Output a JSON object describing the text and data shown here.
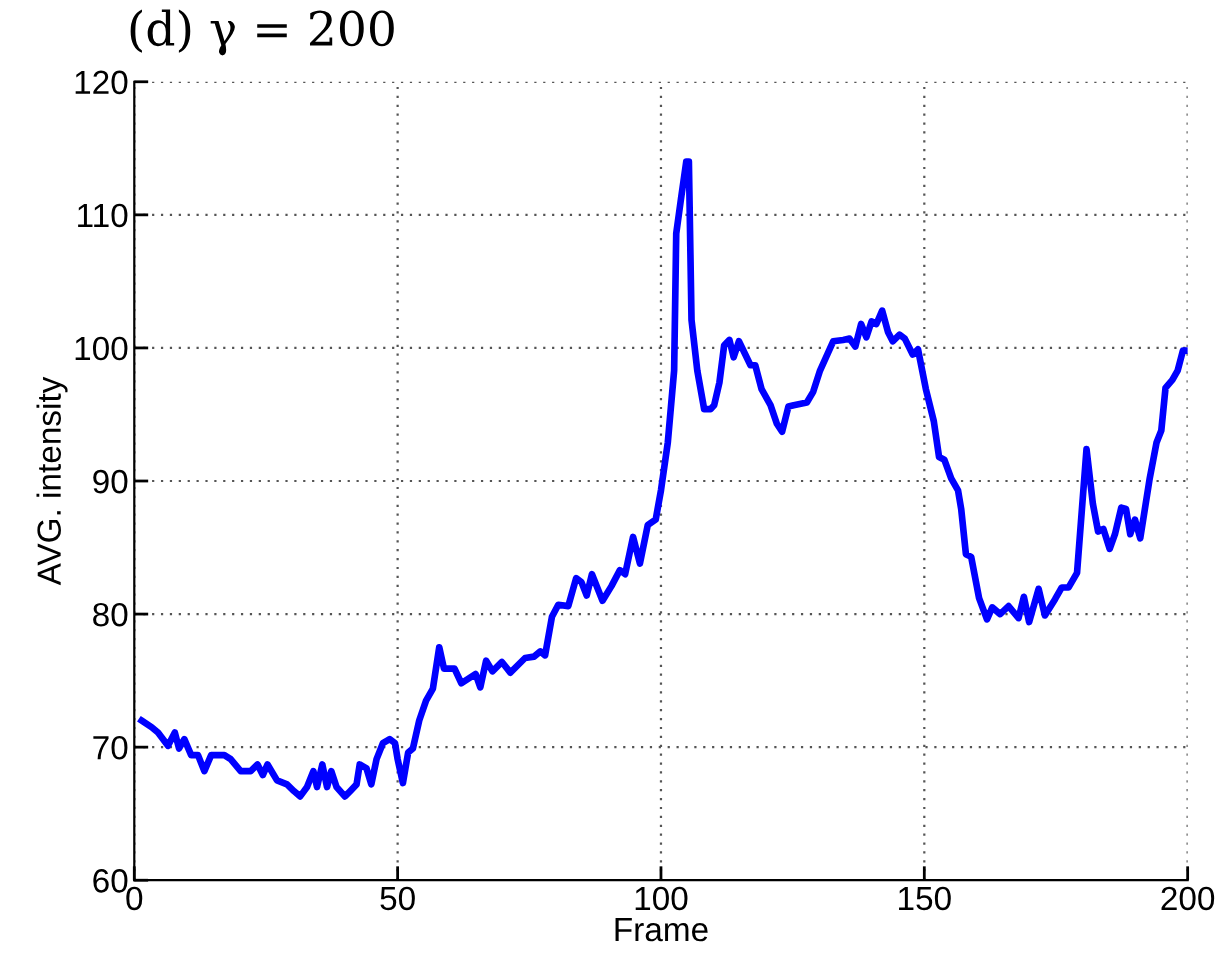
{
  "chart_data": {
    "type": "line",
    "title": "(d) γ = 200",
    "xlabel": "Frame",
    "ylabel": "AVG. intensity",
    "x": [
      1.4,
      3.3,
      4.5,
      6.4,
      7.7,
      8.5,
      9.5,
      10.8,
      12.1,
      13.3,
      14.6,
      17.1,
      18.3,
      20.2,
      22.1,
      23.4,
      24.4,
      25.3,
      27.1,
      29.0,
      30.3,
      31.5,
      32.8,
      34.0,
      34.7,
      35.7,
      36.6,
      37.4,
      38.4,
      40.0,
      41.0,
      42.2,
      42.8,
      44.1,
      45.0,
      46.0,
      47.2,
      48.5,
      49.5,
      50.0,
      51.0,
      52.0,
      52.9,
      54.1,
      55.4,
      56.7,
      57.9,
      58.8,
      60.8,
      62.1,
      64.8,
      65.7,
      66.8,
      68.0,
      69.8,
      71.4,
      74.2,
      75.9,
      77.1,
      78.0,
      79.3,
      80.5,
      82.4,
      83.9,
      84.9,
      85.9,
      86.9,
      88.9,
      90.6,
      92.2,
      93.2,
      94.7,
      96.0,
      97.5,
      99.0,
      100.0,
      101.3,
      102.5,
      102.9,
      103.8,
      104.8,
      105.3,
      105.8,
      106.9,
      108.2,
      109.4,
      110.1,
      111.1,
      112.0,
      113.0,
      113.8,
      114.8,
      117.0,
      117.9,
      119.1,
      120.8,
      122.0,
      123.0,
      124.2,
      125.2,
      127.7,
      128.9,
      130.2,
      132.7,
      134.6,
      135.8,
      136.9,
      138.0,
      139.0,
      140.0,
      140.9,
      142.0,
      143.1,
      144.0,
      145.3,
      146.3,
      147.8,
      148.8,
      150.3,
      151.8,
      152.8,
      153.8,
      155.1,
      156.4,
      157.0,
      157.9,
      158.9,
      160.4,
      161.9,
      162.9,
      164.4,
      166.0,
      167.9,
      168.9,
      169.9,
      171.7,
      172.9,
      174.8,
      176.1,
      177.4,
      179.0,
      180.8,
      182.0,
      183.0,
      184.0,
      185.2,
      186.2,
      187.4,
      188.3,
      189.1,
      190.0,
      191.0,
      192.8,
      194.1,
      195.0,
      195.8,
      197.1,
      198.1,
      199.1,
      199.7
    ],
    "series": [
      {
        "color": "#0000ff",
        "values": [
          72.0,
          71.5,
          71.1,
          70.1,
          71.1,
          69.9,
          70.6,
          69.4,
          69.4,
          68.2,
          69.4,
          69.4,
          69.1,
          68.2,
          68.2,
          68.7,
          67.9,
          68.7,
          67.5,
          67.2,
          66.7,
          66.3,
          67.0,
          68.2,
          67.0,
          68.7,
          67.0,
          68.2,
          67.0,
          66.3,
          66.7,
          67.2,
          68.7,
          68.4,
          67.2,
          69.1,
          70.3,
          70.6,
          70.3,
          69.1,
          67.3,
          69.6,
          69.9,
          72.0,
          73.5,
          74.4,
          77.5,
          75.9,
          75.9,
          74.8,
          75.5,
          74.5,
          76.5,
          75.7,
          76.4,
          75.6,
          76.7,
          76.8,
          77.2,
          76.9,
          79.8,
          80.7,
          80.6,
          82.7,
          82.4,
          81.4,
          83.0,
          81.0,
          82.1,
          83.3,
          83.0,
          85.8,
          83.8,
          86.7,
          87.1,
          89.3,
          92.9,
          98.3,
          108.6,
          111.2,
          114.0,
          114.0,
          102.1,
          98.3,
          95.4,
          95.4,
          95.7,
          97.4,
          100.2,
          100.6,
          99.3,
          100.5,
          98.7,
          98.7,
          96.9,
          95.7,
          94.3,
          93.7,
          95.6,
          95.7,
          95.9,
          96.7,
          98.3,
          100.5,
          100.6,
          100.7,
          100.1,
          101.8,
          100.8,
          102.0,
          101.8,
          102.8,
          101.2,
          100.5,
          101.0,
          100.7,
          99.5,
          99.9,
          96.9,
          94.5,
          91.8,
          91.6,
          90.2,
          89.3,
          87.9,
          84.5,
          84.3,
          81.2,
          79.6,
          80.5,
          80.0,
          80.6,
          79.7,
          81.3,
          79.4,
          81.9,
          79.9,
          81.1,
          82.0,
          82.0,
          83.1,
          92.4,
          88.3,
          86.2,
          86.4,
          84.9,
          86.0,
          88.0,
          87.9,
          86.0,
          87.1,
          85.7,
          90.2,
          92.9,
          93.8,
          97.0,
          97.6,
          98.3,
          99.8,
          99.8
        ]
      }
    ],
    "xlim": [
      0,
      200
    ],
    "ylim": [
      60,
      120
    ],
    "xticks": [
      0,
      50,
      100,
      150,
      200
    ],
    "yticks": [
      60,
      70,
      80,
      90,
      100,
      110,
      120
    ],
    "grid": true
  }
}
